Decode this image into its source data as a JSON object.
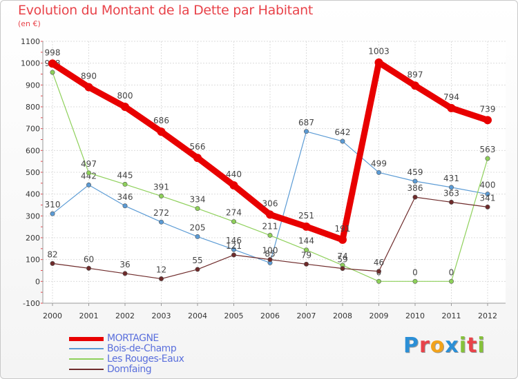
{
  "title": "Evolution du Montant de la Dette par Habitant",
  "subtitle": "(en €)",
  "logo_text": "Proxiti",
  "chart_data": {
    "type": "line",
    "title": "Evolution du Montant de la Dette par Habitant",
    "subtitle": "(en €)",
    "xlabel": "",
    "ylabel": "",
    "ylim": [
      -100,
      1100
    ],
    "yticks": [
      -100,
      0,
      100,
      200,
      300,
      400,
      500,
      600,
      700,
      800,
      900,
      1000,
      1100
    ],
    "grid": true,
    "legend_position": "bottom-left",
    "categories": [
      "2000",
      "2001",
      "2002",
      "2003",
      "2004",
      "2005",
      "2006",
      "2007",
      "2008",
      "2009",
      "2010",
      "2011",
      "2012"
    ],
    "series": [
      {
        "name": "MORTAGNE",
        "color": "#e80000",
        "values": [
          998,
          890,
          800,
          686,
          566,
          440,
          306,
          251,
          191,
          1003,
          897,
          794,
          739
        ]
      },
      {
        "name": "Bois-de-Champ",
        "color": "#5b9bd5",
        "values": [
          310,
          442,
          346,
          272,
          205,
          146,
          85,
          687,
          642,
          499,
          459,
          431,
          400
        ]
      },
      {
        "name": "Les Rouges-Eaux",
        "color": "#8ed05a",
        "values": [
          958,
          497,
          445,
          391,
          334,
          274,
          211,
          144,
          74,
          0,
          0,
          0,
          563
        ]
      },
      {
        "name": "Domfaing",
        "color": "#6e2a2a",
        "values": [
          82,
          60,
          36,
          12,
          55,
          121,
          100,
          79,
          59,
          46,
          386,
          363,
          341
        ]
      }
    ]
  }
}
